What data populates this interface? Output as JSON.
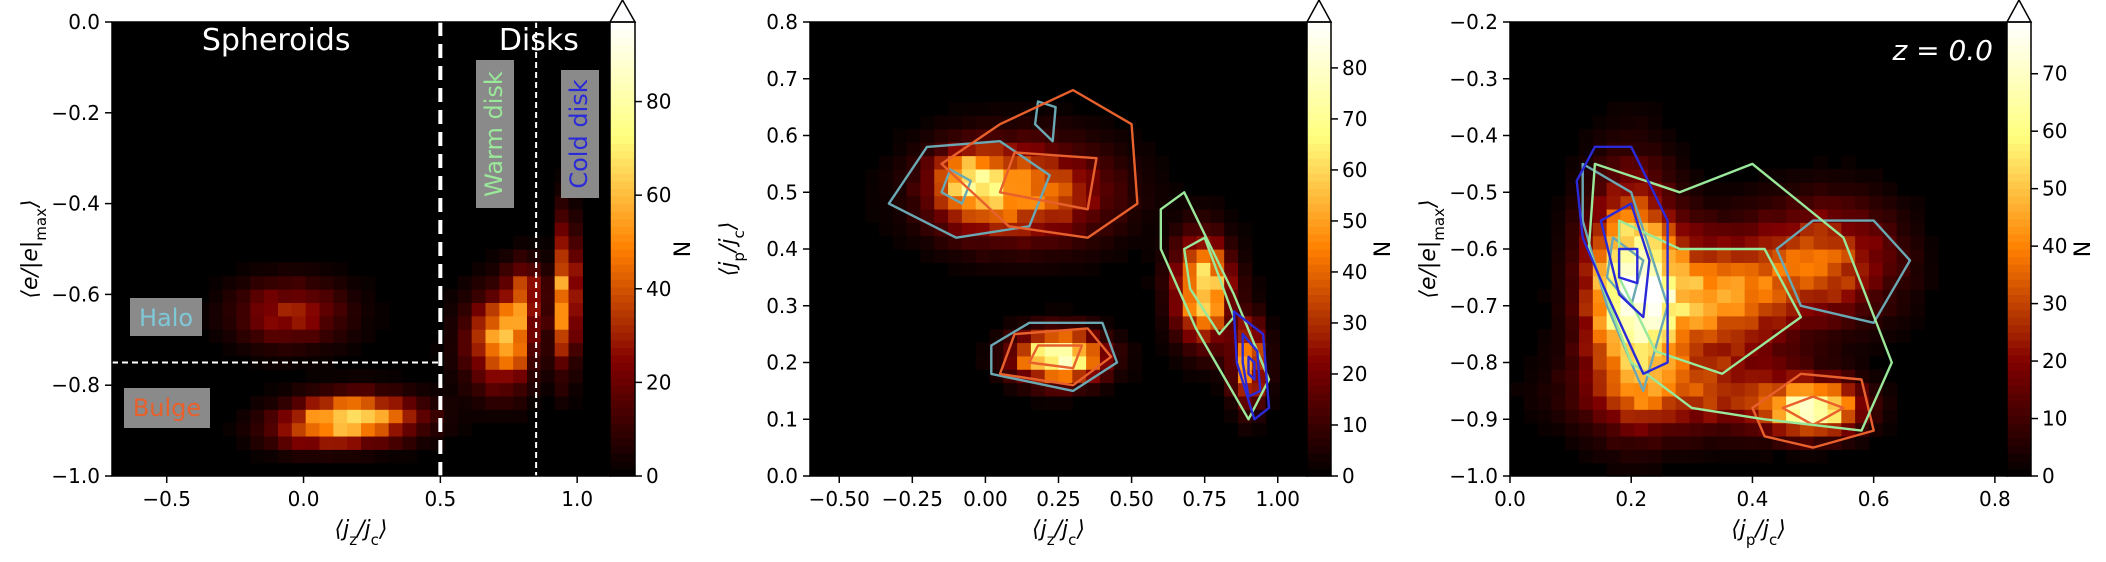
{
  "chart_data": [
    {
      "type": "heatmap",
      "xlabel": "⟨j_z/j_c⟩",
      "ylabel": "⟨e/|e|_max⟩",
      "xlim": [
        -0.7,
        1.12
      ],
      "ylim": [
        -1.0,
        0.0
      ],
      "xticks": [
        -0.5,
        0.0,
        0.5,
        1.0
      ],
      "xticklabels": [
        "−0.5",
        "0.0",
        "0.5",
        "1.0"
      ],
      "yticks": [
        0.0,
        -0.2,
        -0.4,
        -0.6,
        -0.8,
        -1.0
      ],
      "yticklabels": [
        "0.0",
        "−0.2",
        "−0.4",
        "−0.6",
        "−0.8",
        "−1.0"
      ],
      "colorbar": {
        "label": "N",
        "min": 0,
        "max": 97,
        "ticks": [
          0,
          20,
          40,
          60,
          80
        ],
        "extend": "max"
      },
      "region_labels": [
        {
          "text": "Spheroids",
          "color": "#ffffff"
        },
        {
          "text": "Disks",
          "color": "#ffffff"
        }
      ],
      "component_labels": [
        {
          "text": "Halo",
          "color": "#7ec8d8"
        },
        {
          "text": "Bulge",
          "color": "#e8602c"
        },
        {
          "text": "Warm disk",
          "color": "#9ae89a"
        },
        {
          "text": "Cold disk",
          "color": "#2a2ad8"
        }
      ],
      "dividers": [
        {
          "x": 0.5,
          "style": "thick-dashed"
        },
        {
          "x": 0.85,
          "style": "thin-dashed"
        },
        {
          "y": -0.75,
          "x_range": [
            -0.7,
            0.5
          ],
          "style": "thin-dashed"
        }
      ],
      "density_blobs": [
        {
          "x": -0.05,
          "y": -0.64,
          "sx": 0.14,
          "sy": 0.05,
          "amp": 28
        },
        {
          "x": 0.2,
          "y": -0.87,
          "sx": 0.15,
          "sy": 0.035,
          "amp": 62
        },
        {
          "x": 0.02,
          "y": -0.9,
          "sx": 0.12,
          "sy": 0.03,
          "amp": 25
        },
        {
          "x": 0.73,
          "y": -0.7,
          "sx": 0.09,
          "sy": 0.07,
          "amp": 55
        },
        {
          "x": 0.82,
          "y": -0.6,
          "sx": 0.05,
          "sy": 0.05,
          "amp": 35
        },
        {
          "x": 0.96,
          "y": -0.6,
          "sx": 0.025,
          "sy": 0.1,
          "amp": 95
        }
      ]
    },
    {
      "type": "heatmap",
      "xlabel": "⟨j_z/j_c⟩",
      "ylabel": "⟨j_p/j_c⟩",
      "xlim": [
        -0.6,
        1.1
      ],
      "ylim": [
        0.0,
        0.8
      ],
      "xticks": [
        -0.5,
        -0.25,
        0.0,
        0.25,
        0.5,
        0.75,
        1.0
      ],
      "xticklabels": [
        "−0.50",
        "−0.25",
        "0.00",
        "0.25",
        "0.50",
        "0.75",
        "1.00"
      ],
      "yticks": [
        0.0,
        0.1,
        0.2,
        0.3,
        0.4,
        0.5,
        0.6,
        0.7,
        0.8
      ],
      "yticklabels": [
        "0.0",
        "0.1",
        "0.2",
        "0.3",
        "0.4",
        "0.5",
        "0.6",
        "0.7",
        "0.8"
      ],
      "colorbar": {
        "label": "N",
        "min": 0,
        "max": 89,
        "ticks": [
          0,
          10,
          20,
          30,
          40,
          50,
          60,
          70,
          80
        ],
        "extend": "max"
      },
      "density_blobs": [
        {
          "x": 0.12,
          "y": 0.5,
          "sx": 0.2,
          "sy": 0.06,
          "amp": 45
        },
        {
          "x": -0.05,
          "y": 0.52,
          "sx": 0.08,
          "sy": 0.04,
          "amp": 40
        },
        {
          "x": 0.25,
          "y": 0.21,
          "sx": 0.1,
          "sy": 0.03,
          "amp": 80
        },
        {
          "x": 0.75,
          "y": 0.33,
          "sx": 0.07,
          "sy": 0.06,
          "amp": 65
        },
        {
          "x": 0.9,
          "y": 0.2,
          "sx": 0.04,
          "sy": 0.05,
          "amp": 70
        }
      ],
      "contours": [
        {
          "component": "Halo",
          "color": "#6aa8b4",
          "rings": [
            [
              -0.33,
              0.48,
              -0.1,
              0.42,
              0.15,
              0.44,
              0.22,
              0.53,
              0.05,
              0.59,
              -0.2,
              0.58
            ],
            [
              -0.15,
              0.5,
              -0.08,
              0.48,
              -0.05,
              0.52,
              -0.12,
              0.54
            ],
            [
              0.17,
              0.62,
              0.23,
              0.59,
              0.24,
              0.65,
              0.18,
              0.66
            ],
            [
              0.02,
              0.18,
              0.3,
              0.15,
              0.45,
              0.2,
              0.4,
              0.27,
              0.15,
              0.27,
              0.02,
              0.23
            ]
          ]
        },
        {
          "component": "Bulge",
          "color": "#e8602c",
          "rings": [
            [
              -0.15,
              0.55,
              0.08,
              0.44,
              0.35,
              0.42,
              0.52,
              0.48,
              0.5,
              0.62,
              0.3,
              0.68,
              0.05,
              0.62
            ],
            [
              0.05,
              0.5,
              0.35,
              0.47,
              0.38,
              0.56,
              0.1,
              0.57
            ],
            [
              0.05,
              0.18,
              0.3,
              0.16,
              0.43,
              0.21,
              0.35,
              0.26,
              0.1,
              0.25
            ],
            [
              0.15,
              0.2,
              0.3,
              0.19,
              0.33,
              0.23,
              0.18,
              0.23
            ]
          ]
        },
        {
          "component": "Warm disk",
          "color": "#9ae89a",
          "rings": [
            [
              0.6,
              0.47,
              0.68,
              0.5,
              0.85,
              0.32,
              0.97,
              0.17,
              0.9,
              0.1,
              0.72,
              0.26,
              0.6,
              0.4
            ],
            [
              0.68,
              0.4,
              0.75,
              0.42,
              0.85,
              0.28,
              0.8,
              0.25,
              0.7,
              0.33
            ]
          ]
        },
        {
          "component": "Cold disk",
          "color": "#2a2ad8",
          "rings": [
            [
              0.85,
              0.29,
              0.95,
              0.25,
              0.97,
              0.12,
              0.92,
              0.1,
              0.86,
              0.2
            ],
            [
              0.88,
              0.25,
              0.93,
              0.22,
              0.94,
              0.15,
              0.9,
              0.14,
              0.88,
              0.2
            ],
            [
              0.9,
              0.21,
              0.92,
              0.2,
              0.92,
              0.17,
              0.9,
              0.18
            ]
          ]
        }
      ]
    },
    {
      "type": "heatmap",
      "annotation": "z = 0.0",
      "xlabel": "⟨j_p/j_c⟩",
      "ylabel": "⟨e/|e|_max⟩",
      "xlim": [
        0.0,
        0.82
      ],
      "ylim": [
        -1.0,
        -0.2
      ],
      "xticks": [
        0.0,
        0.2,
        0.4,
        0.6,
        0.8
      ],
      "xticklabels": [
        "0.0",
        "0.2",
        "0.4",
        "0.6",
        "0.8"
      ],
      "yticks": [
        -0.2,
        -0.3,
        -0.4,
        -0.5,
        -0.6,
        -0.7,
        -0.8,
        -0.9,
        -1.0
      ],
      "yticklabels": [
        "−0.2",
        "−0.3",
        "−0.4",
        "−0.5",
        "−0.6",
        "−0.7",
        "−0.8",
        "−0.9",
        "−1.0"
      ],
      "colorbar": {
        "label": "N",
        "min": 0,
        "max": 79,
        "ticks": [
          0,
          10,
          20,
          30,
          40,
          50,
          60,
          70
        ],
        "extend": "max"
      },
      "density_blobs": [
        {
          "x": 0.2,
          "y": -0.67,
          "sx": 0.05,
          "sy": 0.12,
          "amp": 68
        },
        {
          "x": 0.33,
          "y": -0.68,
          "sx": 0.09,
          "sy": 0.07,
          "amp": 42
        },
        {
          "x": 0.5,
          "y": -0.88,
          "sx": 0.05,
          "sy": 0.03,
          "amp": 70
        },
        {
          "x": 0.52,
          "y": -0.62,
          "sx": 0.08,
          "sy": 0.07,
          "amp": 32
        },
        {
          "x": 0.3,
          "y": -0.85,
          "sx": 0.12,
          "sy": 0.05,
          "amp": 28
        }
      ],
      "contours": [
        {
          "component": "Halo",
          "color": "#6aa8b4",
          "rings": [
            [
              0.44,
              -0.6,
              0.5,
              -0.55,
              0.6,
              -0.55,
              0.66,
              -0.62,
              0.6,
              -0.73,
              0.48,
              -0.7
            ],
            [
              0.12,
              -0.45,
              0.2,
              -0.5,
              0.26,
              -0.7,
              0.22,
              -0.85,
              0.16,
              -0.7,
              0.12,
              -0.55
            ],
            [
              0.17,
              -0.58,
              0.22,
              -0.62,
              0.2,
              -0.7,
              0.16,
              -0.65
            ]
          ]
        },
        {
          "component": "Bulge",
          "color": "#e8602c",
          "rings": [
            [
              0.4,
              -0.88,
              0.48,
              -0.82,
              0.58,
              -0.83,
              0.6,
              -0.92,
              0.5,
              -0.95,
              0.42,
              -0.93
            ],
            [
              0.45,
              -0.88,
              0.5,
              -0.86,
              0.55,
              -0.88,
              0.5,
              -0.91
            ]
          ]
        },
        {
          "component": "Warm disk",
          "color": "#9ae89a",
          "rings": [
            [
              0.14,
              -0.45,
              0.28,
              -0.5,
              0.4,
              -0.45,
              0.55,
              -0.58,
              0.63,
              -0.8,
              0.58,
              -0.92,
              0.42,
              -0.9,
              0.3,
              -0.88,
              0.2,
              -0.8,
              0.13,
              -0.6
            ],
            [
              0.18,
              -0.55,
              0.28,
              -0.6,
              0.42,
              -0.6,
              0.48,
              -0.72,
              0.35,
              -0.82,
              0.24,
              -0.78,
              0.18,
              -0.65
            ]
          ]
        },
        {
          "component": "Cold disk",
          "color": "#2a2ad8",
          "rings": [
            [
              0.11,
              -0.48,
              0.14,
              -0.42,
              0.2,
              -0.42,
              0.26,
              -0.55,
              0.26,
              -0.8,
              0.22,
              -0.82,
              0.16,
              -0.68,
              0.12,
              -0.58
            ],
            [
              0.15,
              -0.55,
              0.2,
              -0.52,
              0.23,
              -0.62,
              0.22,
              -0.72,
              0.18,
              -0.68
            ],
            [
              0.18,
              -0.6,
              0.21,
              -0.6,
              0.21,
              -0.66,
              0.18,
              -0.65
            ]
          ]
        }
      ]
    }
  ]
}
